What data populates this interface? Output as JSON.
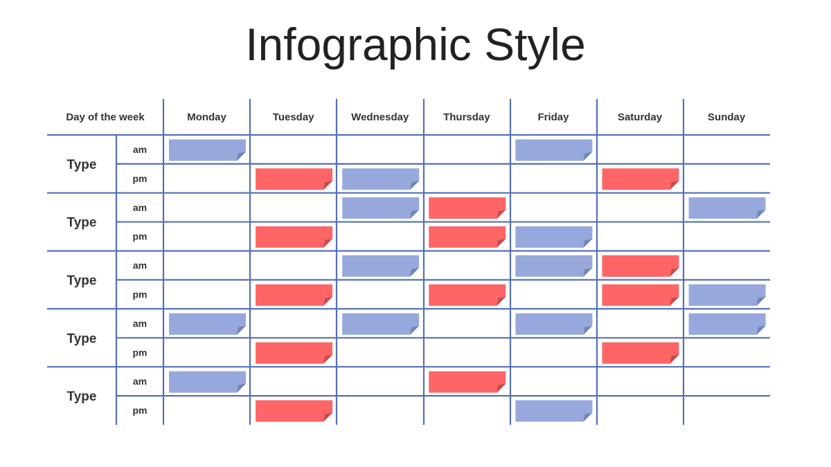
{
  "title": "Infographic Style",
  "corner_label": "Day of the week",
  "days": [
    "Monday",
    "Tuesday",
    "Wednesday",
    "Thursday",
    "Friday",
    "Saturday",
    "Sunday"
  ],
  "slots": [
    "am",
    "pm"
  ],
  "groups": [
    {
      "label": "Type",
      "am": [
        "blue",
        null,
        null,
        null,
        "blue",
        null,
        null
      ],
      "pm": [
        null,
        "red",
        "blue",
        null,
        null,
        "red",
        null
      ]
    },
    {
      "label": "Type",
      "am": [
        null,
        null,
        "blue",
        "red",
        null,
        null,
        "blue"
      ],
      "pm": [
        null,
        "red",
        null,
        "red",
        "blue",
        null,
        null
      ]
    },
    {
      "label": "Type",
      "am": [
        null,
        null,
        "blue",
        null,
        "blue",
        "red",
        null
      ],
      "pm": [
        null,
        "red",
        null,
        "red",
        null,
        "red",
        "blue"
      ]
    },
    {
      "label": "Type",
      "am": [
        "blue",
        null,
        "blue",
        null,
        "blue",
        null,
        "blue"
      ],
      "pm": [
        null,
        "red",
        null,
        null,
        null,
        "red",
        null
      ]
    },
    {
      "label": "Type",
      "am": [
        "blue",
        null,
        null,
        "red",
        null,
        null,
        null
      ],
      "pm": [
        null,
        "red",
        null,
        null,
        "blue",
        null,
        null
      ]
    }
  ],
  "colors": {
    "grid": "#5470B5",
    "blue": "#97A9DC",
    "blue_fold": "#7283B5",
    "red": "#FD6567",
    "red_fold": "#C84A4C"
  }
}
